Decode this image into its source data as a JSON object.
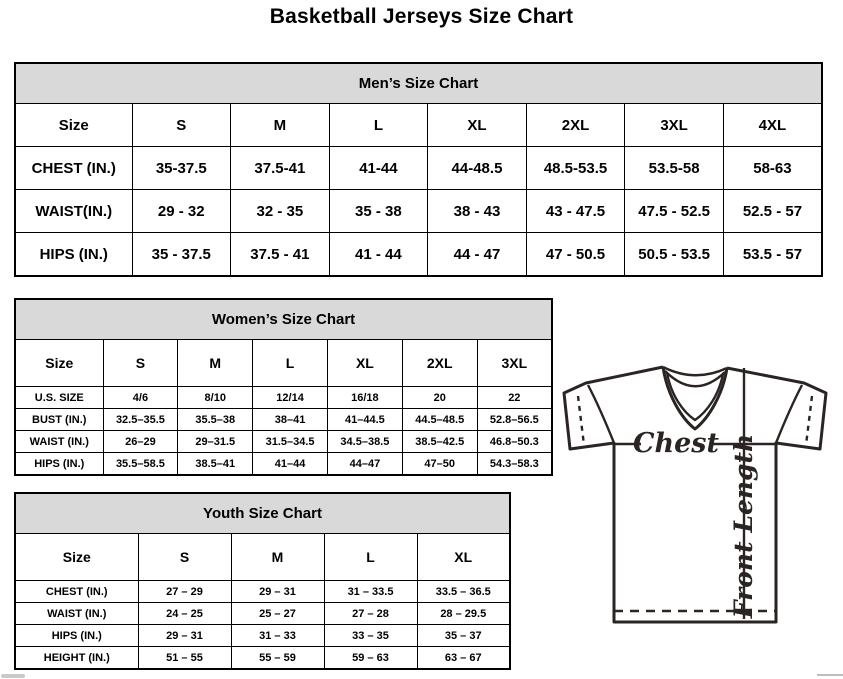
{
  "page": {
    "title": "Basketball Jerseys Size Chart"
  },
  "tables": [
    {
      "id": "mens",
      "title": "Men’s Size Chart",
      "columns": [
        "Size",
        "S",
        "M",
        "L",
        "XL",
        "2XL",
        "3XL",
        "4XL"
      ],
      "rows": [
        {
          "label": "CHEST (IN.)",
          "values": [
            "35-37.5",
            "37.5-41",
            "41-44",
            "44-48.5",
            "48.5-53.5",
            "53.5-58",
            "58-63"
          ]
        },
        {
          "label": "WAIST(IN.)",
          "values": [
            "29 - 32",
            "32 - 35",
            "35 - 38",
            "38 - 43",
            "43 - 47.5",
            "47.5 - 52.5",
            "52.5 - 57"
          ]
        },
        {
          "label": "HIPS (IN.)",
          "values": [
            "35 - 37.5",
            "37.5 - 41",
            "41 - 44",
            "44 - 47",
            "47 - 50.5",
            "50.5 - 53.5",
            "53.5 - 57"
          ]
        }
      ]
    },
    {
      "id": "womens",
      "title": "Women’s Size Chart",
      "columns": [
        "Size",
        "S",
        "M",
        "L",
        "XL",
        "2XL",
        "3XL"
      ],
      "rows": [
        {
          "label": "U.S. SIZE",
          "values": [
            "4/6",
            "8/10",
            "12/14",
            "16/18",
            "20",
            "22"
          ]
        },
        {
          "label": "BUST (IN.)",
          "values": [
            "32.5–35.5",
            "35.5–38",
            "38–41",
            "41–44.5",
            "44.5–48.5",
            "52.8–56.5"
          ]
        },
        {
          "label": "WAIST (IN.)",
          "values": [
            "26–29",
            "29–31.5",
            "31.5–34.5",
            "34.5–38.5",
            "38.5–42.5",
            "46.8–50.3"
          ]
        },
        {
          "label": "HIPS (IN.)",
          "values": [
            "35.5–58.5",
            "38.5–41",
            "41–44",
            "44–47",
            "47–50",
            "54.3–58.3"
          ]
        }
      ]
    },
    {
      "id": "youth",
      "title": "Youth Size Chart",
      "columns": [
        "Size",
        "S",
        "M",
        "L",
        "XL"
      ],
      "rows": [
        {
          "label": "CHEST (IN.)",
          "values": [
            "27 – 29",
            "29 – 31",
            "31 – 33.5",
            "33.5 – 36.5"
          ]
        },
        {
          "label": "WAIST (IN.)",
          "values": [
            "24 – 25",
            "25 – 27",
            "27 – 28",
            "28 – 29.5"
          ]
        },
        {
          "label": "HIPS (IN.)",
          "values": [
            "29 – 31",
            "31 – 33",
            "33 – 35",
            "35 – 37"
          ]
        },
        {
          "label": "HEIGHT (IN.)",
          "values": [
            "51 – 55",
            "55 – 59",
            "59 – 63",
            "63 – 67"
          ]
        }
      ]
    }
  ],
  "diagram": {
    "chest_label": "Chest",
    "front_length_label": "Front Length"
  },
  "colors": {
    "header_fill": "#d9d9d9",
    "table_border": "#000000",
    "line_art": "#2a2422"
  }
}
